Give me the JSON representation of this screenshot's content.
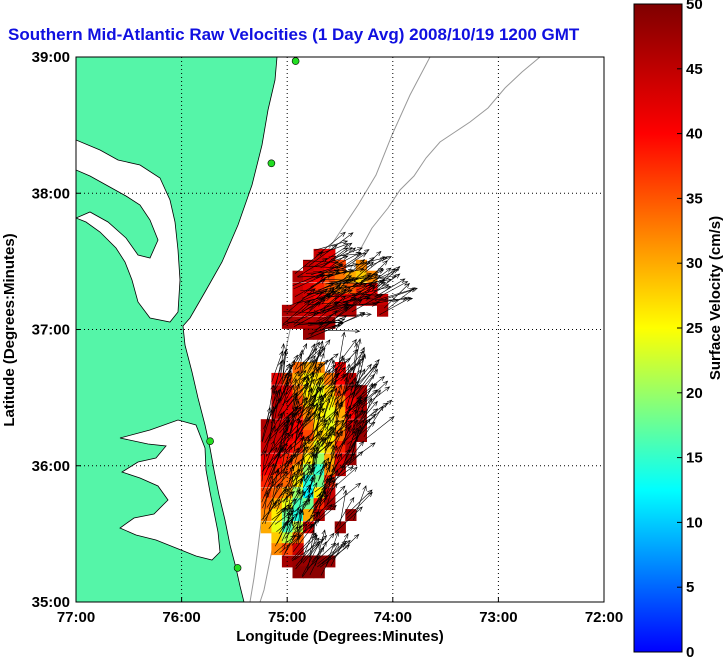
{
  "chart_data": {
    "type": "heatmap",
    "title": "Southern Mid-Atlantic Raw Velocities (1 Day Avg) 2008/10/19 1200 GMT",
    "xlabel": "Longitude (Degrees:Minutes)",
    "ylabel": "Latitude (Degrees:Minutes)",
    "xlim": [
      -77,
      -72
    ],
    "ylim": [
      35,
      39
    ],
    "x_ticks": [
      "77:00",
      "76:00",
      "75:00",
      "74:00",
      "73:00",
      "72:00"
    ],
    "y_ticks": [
      "35:00",
      "36:00",
      "37:00",
      "38:00",
      "39:00"
    ],
    "grid": "dotted",
    "colorbar": {
      "label": "Surface Velocity (cm/s)",
      "min": 0,
      "max": 50,
      "ticks": [
        "0",
        "5",
        "10",
        "15",
        "20",
        "25",
        "30",
        "35",
        "40",
        "45",
        "50"
      ],
      "colors": [
        "#0000ff",
        "#00ffff",
        "#ffff00",
        "#ff0000",
        "#7f0000"
      ]
    },
    "land_color": "#55f5a8",
    "site_color": "#22dd22",
    "radar_sites": [
      {
        "lon": -74.92,
        "lat": 38.97
      },
      {
        "lon": -75.15,
        "lat": 38.22
      },
      {
        "lon": -75.73,
        "lat": 36.18
      },
      {
        "lon": -75.47,
        "lat": 35.25
      }
    ],
    "cell_size_deg": [
      0.1,
      0.083
    ],
    "velocity_cells": [
      {
        "lon": -74.7,
        "lat": 37.55,
        "speed": 44
      },
      {
        "lon": -74.6,
        "lat": 37.55,
        "speed": 42
      },
      {
        "lon": -74.8,
        "lat": 37.47,
        "speed": 45
      },
      {
        "lon": -74.7,
        "lat": 37.47,
        "speed": 43
      },
      {
        "lon": -74.6,
        "lat": 37.47,
        "speed": 40
      },
      {
        "lon": -74.5,
        "lat": 37.47,
        "speed": 36
      },
      {
        "lon": -74.3,
        "lat": 37.47,
        "speed": 32
      },
      {
        "lon": -74.9,
        "lat": 37.39,
        "speed": 46
      },
      {
        "lon": -74.8,
        "lat": 37.39,
        "speed": 43
      },
      {
        "lon": -74.7,
        "lat": 37.39,
        "speed": 40
      },
      {
        "lon": -74.6,
        "lat": 37.39,
        "speed": 36
      },
      {
        "lon": -74.5,
        "lat": 37.39,
        "speed": 33
      },
      {
        "lon": -74.4,
        "lat": 37.39,
        "speed": 30
      },
      {
        "lon": -74.3,
        "lat": 37.39,
        "speed": 28
      },
      {
        "lon": -74.2,
        "lat": 37.39,
        "speed": 32
      },
      {
        "lon": -74.9,
        "lat": 37.3,
        "speed": 44
      },
      {
        "lon": -74.8,
        "lat": 37.3,
        "speed": 42
      },
      {
        "lon": -74.7,
        "lat": 37.3,
        "speed": 38
      },
      {
        "lon": -74.6,
        "lat": 37.3,
        "speed": 35
      },
      {
        "lon": -74.5,
        "lat": 37.3,
        "speed": 33
      },
      {
        "lon": -74.4,
        "lat": 37.3,
        "speed": 35
      },
      {
        "lon": -74.3,
        "lat": 37.3,
        "speed": 38
      },
      {
        "lon": -74.2,
        "lat": 37.3,
        "speed": 40
      },
      {
        "lon": -74.9,
        "lat": 37.22,
        "speed": 45
      },
      {
        "lon": -74.8,
        "lat": 37.22,
        "speed": 43
      },
      {
        "lon": -74.7,
        "lat": 37.22,
        "speed": 40
      },
      {
        "lon": -74.6,
        "lat": 37.22,
        "speed": 38
      },
      {
        "lon": -74.5,
        "lat": 37.22,
        "speed": 40
      },
      {
        "lon": -74.4,
        "lat": 37.22,
        "speed": 42
      },
      {
        "lon": -74.3,
        "lat": 37.22,
        "speed": 44
      },
      {
        "lon": -74.2,
        "lat": 37.22,
        "speed": 46
      },
      {
        "lon": -74.1,
        "lat": 37.22,
        "speed": 44
      },
      {
        "lon": -75.0,
        "lat": 37.14,
        "speed": 46
      },
      {
        "lon": -74.9,
        "lat": 37.14,
        "speed": 44
      },
      {
        "lon": -74.8,
        "lat": 37.14,
        "speed": 42
      },
      {
        "lon": -74.7,
        "lat": 37.14,
        "speed": 42
      },
      {
        "lon": -74.6,
        "lat": 37.14,
        "speed": 44
      },
      {
        "lon": -74.5,
        "lat": 37.14,
        "speed": 45
      },
      {
        "lon": -74.4,
        "lat": 37.14,
        "speed": 46
      },
      {
        "lon": -74.1,
        "lat": 37.14,
        "speed": 46
      },
      {
        "lon": -75.0,
        "lat": 37.05,
        "speed": 47
      },
      {
        "lon": -74.9,
        "lat": 37.05,
        "speed": 46
      },
      {
        "lon": -74.8,
        "lat": 37.05,
        "speed": 45
      },
      {
        "lon": -74.7,
        "lat": 37.05,
        "speed": 46
      },
      {
        "lon": -74.6,
        "lat": 37.05,
        "speed": 47
      },
      {
        "lon": -74.8,
        "lat": 36.97,
        "speed": 48
      },
      {
        "lon": -74.7,
        "lat": 36.97,
        "speed": 47
      },
      {
        "lon": -74.9,
        "lat": 36.72,
        "speed": 34
      },
      {
        "lon": -74.8,
        "lat": 36.72,
        "speed": 30
      },
      {
        "lon": -74.7,
        "lat": 36.72,
        "speed": 32
      },
      {
        "lon": -74.5,
        "lat": 36.72,
        "speed": 40
      },
      {
        "lon": -75.1,
        "lat": 36.64,
        "speed": 42
      },
      {
        "lon": -75.0,
        "lat": 36.64,
        "speed": 36
      },
      {
        "lon": -74.9,
        "lat": 36.64,
        "speed": 30
      },
      {
        "lon": -74.8,
        "lat": 36.64,
        "speed": 26
      },
      {
        "lon": -74.7,
        "lat": 36.64,
        "speed": 27
      },
      {
        "lon": -74.6,
        "lat": 36.64,
        "speed": 33
      },
      {
        "lon": -74.5,
        "lat": 36.64,
        "speed": 40
      },
      {
        "lon": -74.4,
        "lat": 36.64,
        "speed": 45
      },
      {
        "lon": -75.1,
        "lat": 36.55,
        "speed": 44
      },
      {
        "lon": -75.0,
        "lat": 36.55,
        "speed": 40
      },
      {
        "lon": -74.9,
        "lat": 36.55,
        "speed": 33
      },
      {
        "lon": -74.8,
        "lat": 36.55,
        "speed": 26
      },
      {
        "lon": -74.7,
        "lat": 36.55,
        "speed": 24
      },
      {
        "lon": -74.6,
        "lat": 36.55,
        "speed": 28
      },
      {
        "lon": -74.5,
        "lat": 36.55,
        "speed": 36
      },
      {
        "lon": -74.4,
        "lat": 36.55,
        "speed": 43
      },
      {
        "lon": -74.3,
        "lat": 36.55,
        "speed": 46
      },
      {
        "lon": -75.1,
        "lat": 36.47,
        "speed": 45
      },
      {
        "lon": -75.0,
        "lat": 36.47,
        "speed": 42
      },
      {
        "lon": -74.9,
        "lat": 36.47,
        "speed": 36
      },
      {
        "lon": -74.8,
        "lat": 36.47,
        "speed": 28
      },
      {
        "lon": -74.7,
        "lat": 36.47,
        "speed": 24
      },
      {
        "lon": -74.6,
        "lat": 36.47,
        "speed": 26
      },
      {
        "lon": -74.5,
        "lat": 36.47,
        "speed": 32
      },
      {
        "lon": -74.4,
        "lat": 36.47,
        "speed": 41
      },
      {
        "lon": -74.3,
        "lat": 36.47,
        "speed": 46
      },
      {
        "lon": -75.1,
        "lat": 36.39,
        "speed": 44
      },
      {
        "lon": -75.0,
        "lat": 36.39,
        "speed": 42
      },
      {
        "lon": -74.9,
        "lat": 36.39,
        "speed": 38
      },
      {
        "lon": -74.8,
        "lat": 36.39,
        "speed": 32
      },
      {
        "lon": -74.7,
        "lat": 36.39,
        "speed": 26
      },
      {
        "lon": -74.6,
        "lat": 36.39,
        "speed": 24
      },
      {
        "lon": -74.5,
        "lat": 36.39,
        "speed": 30
      },
      {
        "lon": -74.4,
        "lat": 36.39,
        "speed": 40
      },
      {
        "lon": -74.3,
        "lat": 36.39,
        "speed": 46
      },
      {
        "lon": -75.2,
        "lat": 36.3,
        "speed": 46
      },
      {
        "lon": -75.1,
        "lat": 36.3,
        "speed": 44
      },
      {
        "lon": -75.0,
        "lat": 36.3,
        "speed": 42
      },
      {
        "lon": -74.9,
        "lat": 36.3,
        "speed": 40
      },
      {
        "lon": -74.8,
        "lat": 36.3,
        "speed": 34
      },
      {
        "lon": -74.7,
        "lat": 36.3,
        "speed": 27
      },
      {
        "lon": -74.6,
        "lat": 36.3,
        "speed": 24
      },
      {
        "lon": -74.5,
        "lat": 36.3,
        "speed": 30
      },
      {
        "lon": -74.4,
        "lat": 36.3,
        "speed": 42
      },
      {
        "lon": -74.3,
        "lat": 36.3,
        "speed": 47
      },
      {
        "lon": -75.2,
        "lat": 36.22,
        "speed": 45
      },
      {
        "lon": -75.1,
        "lat": 36.22,
        "speed": 44
      },
      {
        "lon": -75.0,
        "lat": 36.22,
        "speed": 42
      },
      {
        "lon": -74.9,
        "lat": 36.22,
        "speed": 40
      },
      {
        "lon": -74.8,
        "lat": 36.22,
        "speed": 36
      },
      {
        "lon": -74.7,
        "lat": 36.22,
        "speed": 28
      },
      {
        "lon": -74.6,
        "lat": 36.22,
        "speed": 26
      },
      {
        "lon": -74.5,
        "lat": 36.22,
        "speed": 34
      },
      {
        "lon": -74.4,
        "lat": 36.22,
        "speed": 44
      },
      {
        "lon": -74.3,
        "lat": 36.22,
        "speed": 48
      },
      {
        "lon": -75.2,
        "lat": 36.14,
        "speed": 44
      },
      {
        "lon": -75.1,
        "lat": 36.14,
        "speed": 42
      },
      {
        "lon": -75.0,
        "lat": 36.14,
        "speed": 40
      },
      {
        "lon": -74.9,
        "lat": 36.14,
        "speed": 38
      },
      {
        "lon": -74.8,
        "lat": 36.14,
        "speed": 30
      },
      {
        "lon": -74.7,
        "lat": 36.14,
        "speed": 24
      },
      {
        "lon": -74.6,
        "lat": 36.14,
        "speed": 28
      },
      {
        "lon": -74.5,
        "lat": 36.14,
        "speed": 38
      },
      {
        "lon": -74.4,
        "lat": 36.14,
        "speed": 46
      },
      {
        "lon": -75.2,
        "lat": 36.05,
        "speed": 42
      },
      {
        "lon": -75.1,
        "lat": 36.05,
        "speed": 40
      },
      {
        "lon": -75.0,
        "lat": 36.05,
        "speed": 38
      },
      {
        "lon": -74.9,
        "lat": 36.05,
        "speed": 34
      },
      {
        "lon": -74.8,
        "lat": 36.05,
        "speed": 26
      },
      {
        "lon": -74.7,
        "lat": 36.05,
        "speed": 20
      },
      {
        "lon": -74.6,
        "lat": 36.05,
        "speed": 30
      },
      {
        "lon": -74.5,
        "lat": 36.05,
        "speed": 42
      },
      {
        "lon": -74.4,
        "lat": 36.05,
        "speed": 48
      },
      {
        "lon": -75.2,
        "lat": 35.97,
        "speed": 40
      },
      {
        "lon": -75.1,
        "lat": 35.97,
        "speed": 38
      },
      {
        "lon": -75.0,
        "lat": 35.97,
        "speed": 36
      },
      {
        "lon": -74.9,
        "lat": 35.97,
        "speed": 30
      },
      {
        "lon": -74.8,
        "lat": 35.97,
        "speed": 20
      },
      {
        "lon": -74.7,
        "lat": 35.97,
        "speed": 15
      },
      {
        "lon": -74.6,
        "lat": 35.97,
        "speed": 32
      },
      {
        "lon": -74.5,
        "lat": 35.97,
        "speed": 45
      },
      {
        "lon": -75.2,
        "lat": 35.89,
        "speed": 38
      },
      {
        "lon": -75.1,
        "lat": 35.89,
        "speed": 36
      },
      {
        "lon": -75.0,
        "lat": 35.89,
        "speed": 34
      },
      {
        "lon": -74.9,
        "lat": 35.89,
        "speed": 26
      },
      {
        "lon": -74.8,
        "lat": 35.89,
        "speed": 14
      },
      {
        "lon": -74.7,
        "lat": 35.89,
        "speed": 18
      },
      {
        "lon": -74.6,
        "lat": 35.89,
        "speed": 38
      },
      {
        "lon": -75.2,
        "lat": 35.8,
        "speed": 36
      },
      {
        "lon": -75.1,
        "lat": 35.8,
        "speed": 34
      },
      {
        "lon": -75.0,
        "lat": 35.8,
        "speed": 30
      },
      {
        "lon": -74.9,
        "lat": 35.8,
        "speed": 20
      },
      {
        "lon": -74.8,
        "lat": 35.8,
        "speed": 12
      },
      {
        "lon": -74.7,
        "lat": 35.8,
        "speed": 26
      },
      {
        "lon": -74.6,
        "lat": 35.8,
        "speed": 44
      },
      {
        "lon": -75.2,
        "lat": 35.72,
        "speed": 34
      },
      {
        "lon": -75.1,
        "lat": 35.72,
        "speed": 30
      },
      {
        "lon": -75.0,
        "lat": 35.72,
        "speed": 24
      },
      {
        "lon": -74.9,
        "lat": 35.72,
        "speed": 16
      },
      {
        "lon": -74.8,
        "lat": 35.72,
        "speed": 18
      },
      {
        "lon": -74.7,
        "lat": 35.72,
        "speed": 38
      },
      {
        "lon": -74.6,
        "lat": 35.72,
        "speed": 47
      },
      {
        "lon": -75.2,
        "lat": 35.64,
        "speed": 32
      },
      {
        "lon": -75.1,
        "lat": 35.64,
        "speed": 26
      },
      {
        "lon": -75.0,
        "lat": 35.64,
        "speed": 18
      },
      {
        "lon": -74.9,
        "lat": 35.64,
        "speed": 14
      },
      {
        "lon": -74.8,
        "lat": 35.64,
        "speed": 30
      },
      {
        "lon": -74.7,
        "lat": 35.64,
        "speed": 46
      },
      {
        "lon": -74.4,
        "lat": 35.64,
        "speed": 48
      },
      {
        "lon": -75.2,
        "lat": 35.55,
        "speed": 30
      },
      {
        "lon": -75.1,
        "lat": 35.55,
        "speed": 24
      },
      {
        "lon": -75.0,
        "lat": 35.55,
        "speed": 16
      },
      {
        "lon": -74.9,
        "lat": 35.55,
        "speed": 22
      },
      {
        "lon": -74.8,
        "lat": 35.55,
        "speed": 42
      },
      {
        "lon": -74.5,
        "lat": 35.55,
        "speed": 48
      },
      {
        "lon": -75.1,
        "lat": 35.47,
        "speed": 28
      },
      {
        "lon": -75.0,
        "lat": 35.47,
        "speed": 22
      },
      {
        "lon": -74.9,
        "lat": 35.47,
        "speed": 34
      },
      {
        "lon": -75.1,
        "lat": 35.39,
        "speed": 32
      },
      {
        "lon": -75.0,
        "lat": 35.39,
        "speed": 36
      },
      {
        "lon": -74.9,
        "lat": 35.39,
        "speed": 44
      },
      {
        "lon": -75.0,
        "lat": 35.3,
        "speed": 47
      },
      {
        "lon": -74.9,
        "lat": 35.3,
        "speed": 48
      },
      {
        "lon": -74.8,
        "lat": 35.3,
        "speed": 48
      },
      {
        "lon": -74.7,
        "lat": 35.3,
        "speed": 49
      },
      {
        "lon": -74.6,
        "lat": 35.3,
        "speed": 48
      },
      {
        "lon": -74.9,
        "lat": 35.22,
        "speed": 49
      },
      {
        "lon": -74.8,
        "lat": 35.22,
        "speed": 49
      },
      {
        "lon": -74.7,
        "lat": 35.22,
        "speed": 49
      }
    ]
  }
}
